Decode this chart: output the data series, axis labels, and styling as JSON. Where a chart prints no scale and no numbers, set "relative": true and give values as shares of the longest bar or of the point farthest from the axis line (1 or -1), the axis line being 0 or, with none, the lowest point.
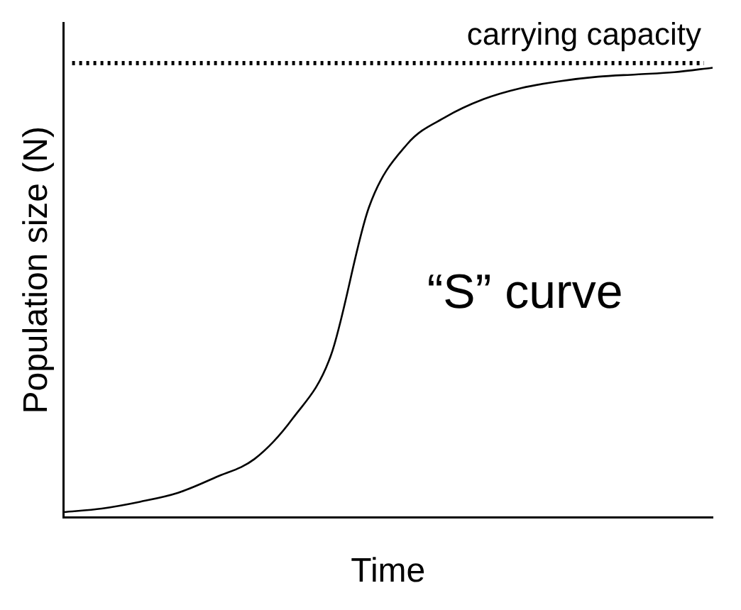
{
  "chart_data": {
    "type": "line",
    "relative": true,
    "xlabel": "Time",
    "ylabel": "Population size (N)",
    "categories": [
      null,
      null,
      null,
      null,
      null,
      null,
      null,
      null,
      null,
      null,
      null,
      null,
      null,
      null,
      null,
      null,
      null,
      null
    ],
    "series": [
      {
        "color": "#000000",
        "values": [
          0.012,
          0.02,
          0.035,
          0.055,
          0.09,
          0.13,
          0.22,
          0.36,
          0.69,
          0.83,
          0.89,
          0.93,
          0.955,
          0.97,
          0.98,
          0.985,
          0.99,
          1
        ]
      }
    ],
    "ref_lines": [
      {
        "axis": "y",
        "value": 1.01,
        "label": "carrying capacity",
        "color": "#000000",
        "line_style": "dotted"
      }
    ],
    "annotations": [
      "“S” curve"
    ],
    "marker": "none",
    "line_style": "solid",
    "grid": false,
    "legend": false
  }
}
